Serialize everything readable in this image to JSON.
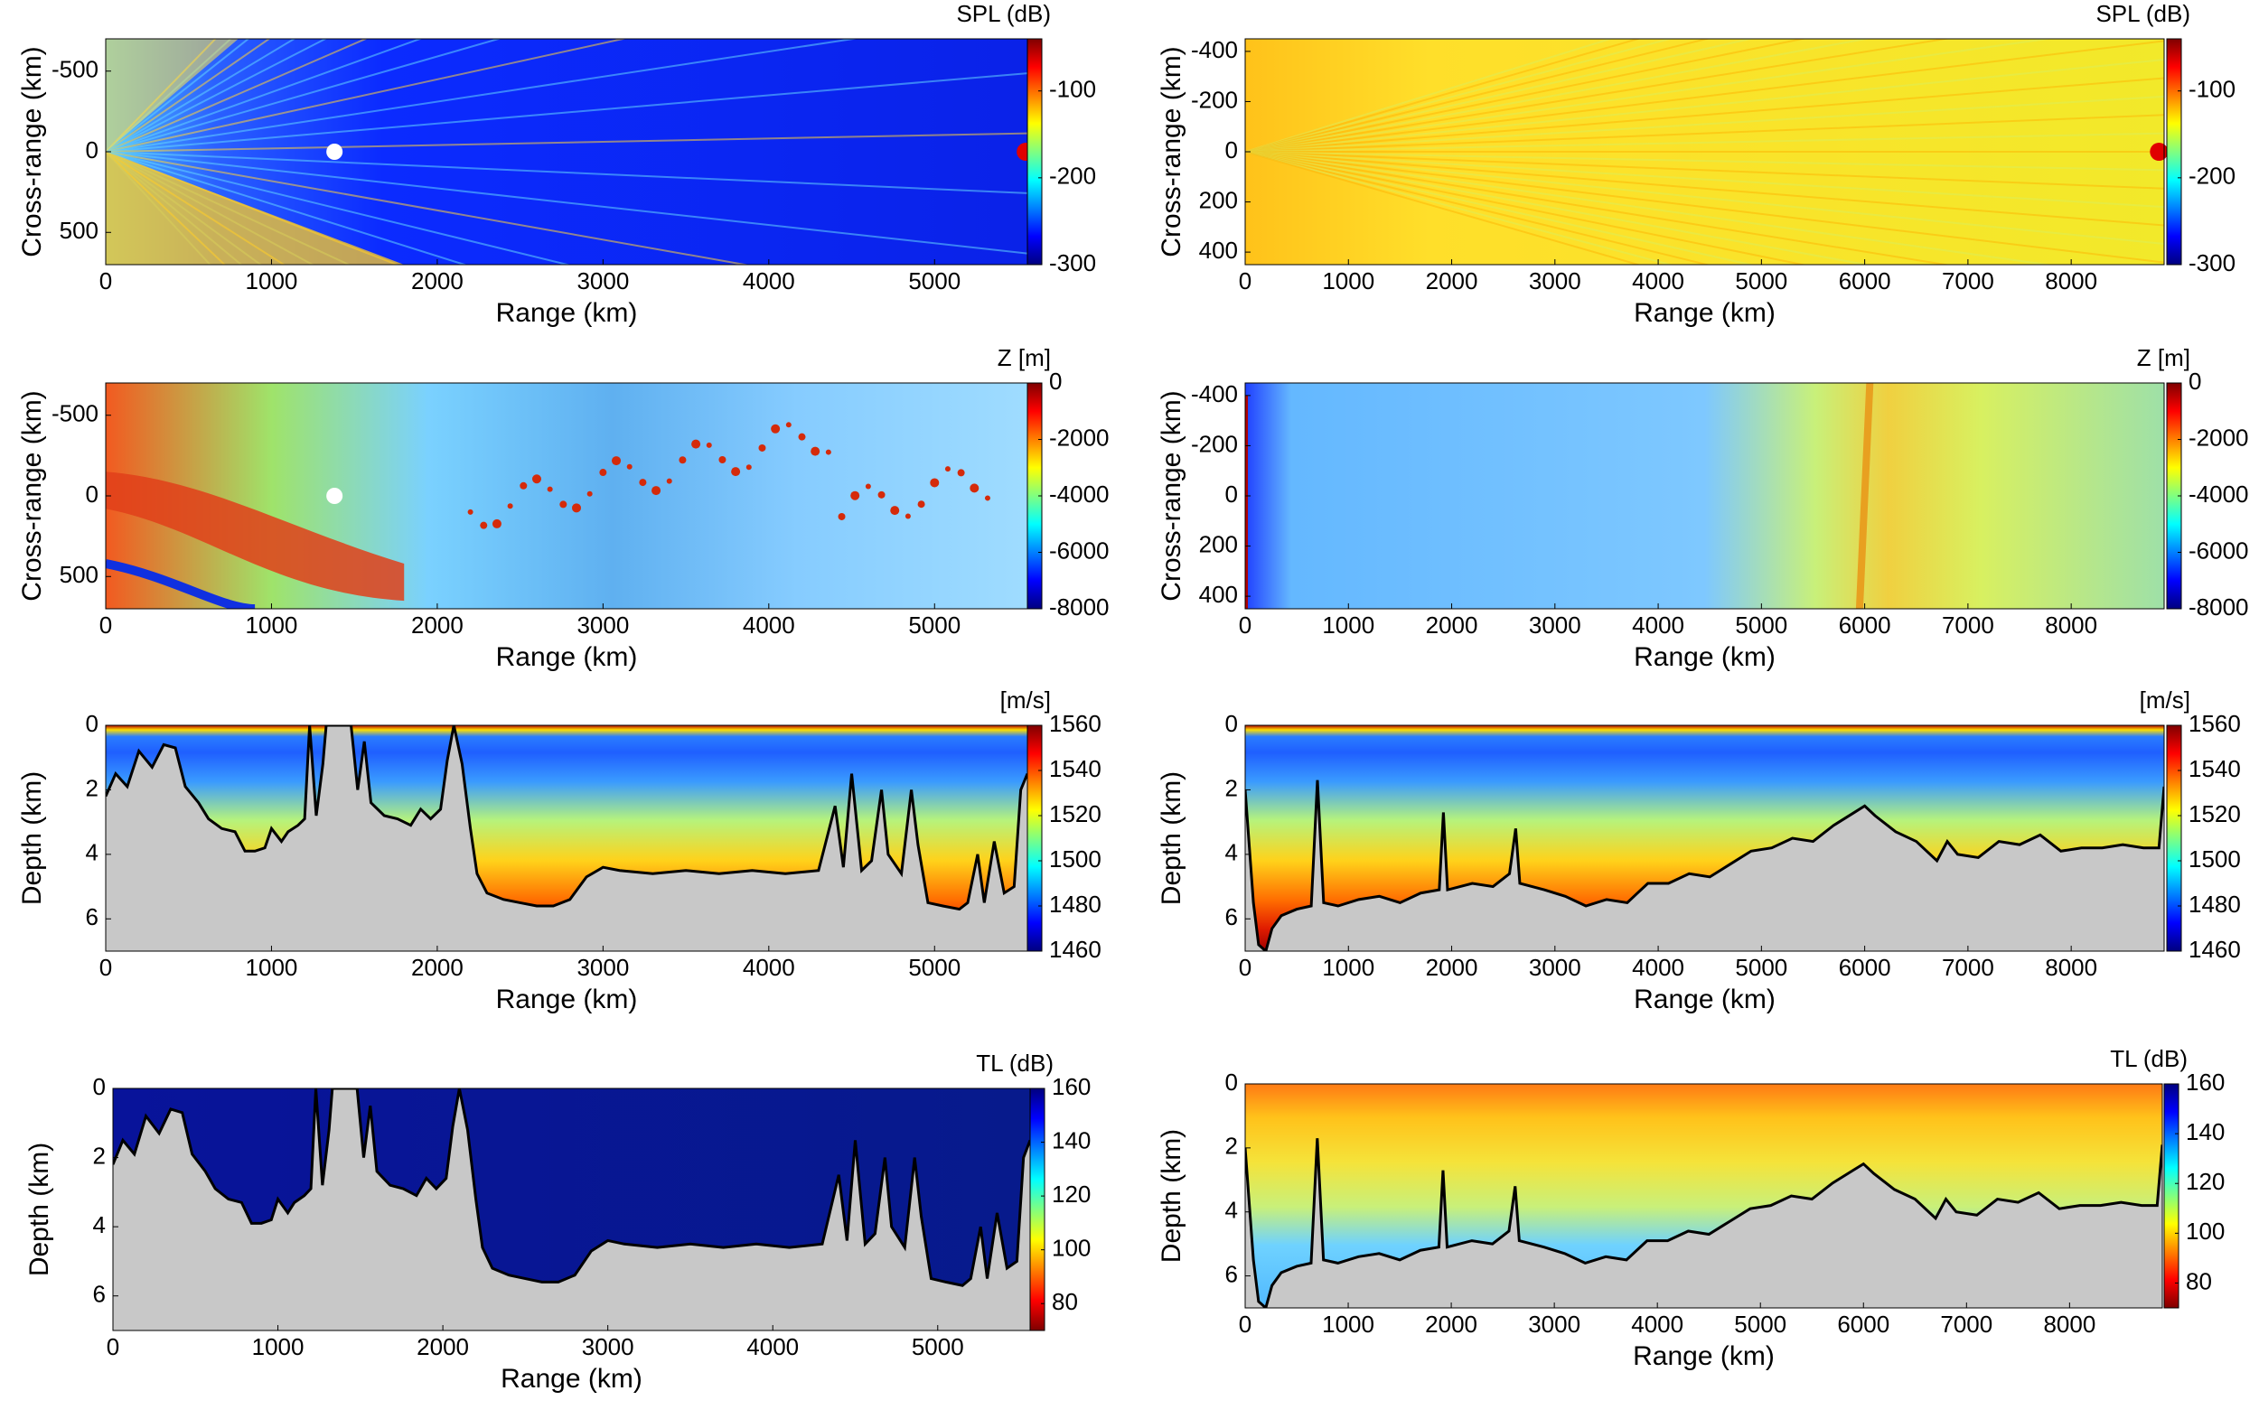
{
  "figure": {
    "colormaps": {
      "jet": [
        "#00007f",
        "#0000ff",
        "#0080ff",
        "#00ffff",
        "#80ff80",
        "#ffff00",
        "#ff8000",
        "#ff0000",
        "#7f0000"
      ]
    },
    "land_color": "#c8c8c8",
    "marker_color": "#e00000"
  },
  "chart_data": [
    {
      "id": "spl-left",
      "type": "heatmap",
      "field": "SPL",
      "xlabel": "Range (km)",
      "ylabel": "Cross-range (km)",
      "x_ticks": [
        0,
        1000,
        2000,
        3000,
        4000,
        5000
      ],
      "x_tick_labels": [
        "0",
        "1000",
        "2000",
        "3000",
        "4000",
        "5000"
      ],
      "xlim": [
        0,
        5560
      ],
      "y_ticks": [
        -500,
        0,
        500
      ],
      "y_tick_labels": [
        "-500",
        "0",
        "500"
      ],
      "ylim": [
        -700,
        700
      ],
      "colorbar": {
        "title": "SPL (dB)",
        "ticks": [
          -100,
          -200,
          -300
        ],
        "tick_labels": [
          "-100",
          "-200",
          "-300"
        ],
        "range": [
          -300,
          -40
        ],
        "reversed": false
      },
      "receiver_marker": {
        "range_km": 5550,
        "cross_km": 0
      }
    },
    {
      "id": "spl-right",
      "type": "heatmap",
      "field": "SPL",
      "xlabel": "Range (km)",
      "ylabel": "Cross-range (km)",
      "x_ticks": [
        0,
        1000,
        2000,
        3000,
        4000,
        5000,
        6000,
        7000,
        8000
      ],
      "x_tick_labels": [
        "0",
        "1000",
        "2000",
        "3000",
        "4000",
        "5000",
        "6000",
        "7000",
        "8000"
      ],
      "xlim": [
        0,
        8900
      ],
      "y_ticks": [
        -400,
        -200,
        0,
        200,
        400
      ],
      "y_tick_labels": [
        "-400",
        "-200",
        "0",
        "200",
        "400"
      ],
      "ylim": [
        -450,
        450
      ],
      "colorbar": {
        "title": "SPL (dB)",
        "ticks": [
          -100,
          -200,
          -300
        ],
        "tick_labels": [
          "-100",
          "-200",
          "-300"
        ],
        "range": [
          -300,
          -40
        ],
        "reversed": false
      },
      "receiver_marker": {
        "range_km": 8850,
        "cross_km": 0
      }
    },
    {
      "id": "bathy-left",
      "type": "heatmap",
      "field": "bathymetry",
      "xlabel": "Range (km)",
      "ylabel": "Cross-range (km)",
      "x_ticks": [
        0,
        1000,
        2000,
        3000,
        4000,
        5000
      ],
      "x_tick_labels": [
        "0",
        "1000",
        "2000",
        "3000",
        "4000",
        "5000"
      ],
      "xlim": [
        0,
        5560
      ],
      "y_ticks": [
        -500,
        0,
        500
      ],
      "y_tick_labels": [
        "-500",
        "0",
        "500"
      ],
      "ylim": [
        -700,
        700
      ],
      "colorbar": {
        "title": "Z [m]",
        "ticks": [
          0,
          -2000,
          -4000,
          -6000,
          -8000
        ],
        "tick_labels": [
          "0",
          "-2000",
          "-4000",
          "-6000",
          "-8000"
        ],
        "range": [
          -8000,
          0
        ],
        "reversed": false
      }
    },
    {
      "id": "bathy-right",
      "type": "heatmap",
      "field": "bathymetry",
      "xlabel": "Range (km)",
      "ylabel": "Cross-range (km)",
      "x_ticks": [
        0,
        1000,
        2000,
        3000,
        4000,
        5000,
        6000,
        7000,
        8000
      ],
      "x_tick_labels": [
        "0",
        "1000",
        "2000",
        "3000",
        "4000",
        "5000",
        "6000",
        "7000",
        "8000"
      ],
      "xlim": [
        0,
        8900
      ],
      "y_ticks": [
        -400,
        -200,
        0,
        200,
        400
      ],
      "y_tick_labels": [
        "-400",
        "-200",
        "0",
        "200",
        "400"
      ],
      "ylim": [
        -450,
        450
      ],
      "colorbar": {
        "title": "Z [m]",
        "ticks": [
          0,
          -2000,
          -4000,
          -6000,
          -8000
        ],
        "tick_labels": [
          "0",
          "-2000",
          "-4000",
          "-6000",
          "-8000"
        ],
        "range": [
          -8000,
          0
        ],
        "reversed": false
      }
    },
    {
      "id": "ssp-left",
      "type": "heatmap",
      "field": "sound speed",
      "xlabel": "Range (km)",
      "ylabel": "Depth (km)",
      "x_ticks": [
        0,
        1000,
        2000,
        3000,
        4000,
        5000
      ],
      "x_tick_labels": [
        "0",
        "1000",
        "2000",
        "3000",
        "4000",
        "5000"
      ],
      "xlim": [
        0,
        5560
      ],
      "y_ticks": [
        0,
        2,
        4,
        6
      ],
      "y_tick_labels": [
        "0",
        "2",
        "4",
        "6"
      ],
      "ylim": [
        0,
        7
      ],
      "colorbar": {
        "title": "[m/s]",
        "ticks": [
          1560,
          1540,
          1520,
          1500,
          1480,
          1460
        ],
        "tick_labels": [
          "1560",
          "1540",
          "1520",
          "1500",
          "1480",
          "1460"
        ],
        "range": [
          1460,
          1560
        ],
        "reversed": false
      },
      "bathymetry_km": [
        [
          0,
          2.2
        ],
        [
          60,
          1.5
        ],
        [
          130,
          1.9
        ],
        [
          200,
          0.8
        ],
        [
          280,
          1.3
        ],
        [
          350,
          0.6
        ],
        [
          420,
          0.7
        ],
        [
          480,
          1.9
        ],
        [
          560,
          2.4
        ],
        [
          620,
          2.9
        ],
        [
          700,
          3.2
        ],
        [
          780,
          3.3
        ],
        [
          840,
          3.9
        ],
        [
          900,
          3.9
        ],
        [
          960,
          3.8
        ],
        [
          1000,
          3.2
        ],
        [
          1060,
          3.6
        ],
        [
          1100,
          3.3
        ],
        [
          1160,
          3.1
        ],
        [
          1200,
          2.9
        ],
        [
          1230,
          0.0
        ],
        [
          1270,
          2.8
        ],
        [
          1310,
          1.2
        ],
        [
          1330,
          0.0
        ],
        [
          1480,
          0.0
        ],
        [
          1520,
          2.0
        ],
        [
          1560,
          0.5
        ],
        [
          1600,
          2.4
        ],
        [
          1680,
          2.8
        ],
        [
          1760,
          2.9
        ],
        [
          1840,
          3.1
        ],
        [
          1900,
          2.6
        ],
        [
          1960,
          2.9
        ],
        [
          2020,
          2.6
        ],
        [
          2060,
          1.1
        ],
        [
          2100,
          0.0
        ],
        [
          2150,
          1.2
        ],
        [
          2200,
          3.2
        ],
        [
          2240,
          4.6
        ],
        [
          2300,
          5.2
        ],
        [
          2400,
          5.4
        ],
        [
          2500,
          5.5
        ],
        [
          2600,
          5.6
        ],
        [
          2700,
          5.6
        ],
        [
          2800,
          5.4
        ],
        [
          2900,
          4.7
        ],
        [
          3000,
          4.4
        ],
        [
          3100,
          4.5
        ],
        [
          3300,
          4.6
        ],
        [
          3500,
          4.5
        ],
        [
          3700,
          4.6
        ],
        [
          3900,
          4.5
        ],
        [
          4100,
          4.6
        ],
        [
          4300,
          4.5
        ],
        [
          4400,
          2.5
        ],
        [
          4450,
          4.4
        ],
        [
          4500,
          1.5
        ],
        [
          4560,
          4.5
        ],
        [
          4620,
          4.2
        ],
        [
          4680,
          2.0
        ],
        [
          4720,
          4.0
        ],
        [
          4800,
          4.6
        ],
        [
          4860,
          2.0
        ],
        [
          4900,
          3.7
        ],
        [
          4960,
          5.5
        ],
        [
          5050,
          5.6
        ],
        [
          5150,
          5.7
        ],
        [
          5200,
          5.5
        ],
        [
          5260,
          4.0
        ],
        [
          5300,
          5.5
        ],
        [
          5360,
          3.6
        ],
        [
          5420,
          5.2
        ],
        [
          5480,
          5.0
        ],
        [
          5520,
          2.0
        ],
        [
          5560,
          1.5
        ]
      ]
    },
    {
      "id": "ssp-right",
      "type": "heatmap",
      "field": "sound speed",
      "xlabel": "Range (km)",
      "ylabel": "Depth (km)",
      "x_ticks": [
        0,
        1000,
        2000,
        3000,
        4000,
        5000,
        6000,
        7000,
        8000
      ],
      "x_tick_labels": [
        "0",
        "1000",
        "2000",
        "3000",
        "4000",
        "5000",
        "6000",
        "7000",
        "8000"
      ],
      "xlim": [
        0,
        8900
      ],
      "y_ticks": [
        0,
        2,
        4,
        6
      ],
      "y_tick_labels": [
        "0",
        "2",
        "4",
        "6"
      ],
      "ylim": [
        0,
        7
      ],
      "colorbar": {
        "title": "[m/s]",
        "ticks": [
          1560,
          1540,
          1520,
          1500,
          1480,
          1460
        ],
        "tick_labels": [
          "1560",
          "1540",
          "1520",
          "1500",
          "1480",
          "1460"
        ],
        "range": [
          1460,
          1560
        ],
        "reversed": false
      },
      "bathymetry_km": [
        [
          0,
          2.0
        ],
        [
          80,
          5.5
        ],
        [
          130,
          6.8
        ],
        [
          200,
          7.0
        ],
        [
          260,
          6.3
        ],
        [
          350,
          5.9
        ],
        [
          500,
          5.7
        ],
        [
          640,
          5.6
        ],
        [
          700,
          1.7
        ],
        [
          760,
          5.5
        ],
        [
          900,
          5.6
        ],
        [
          1100,
          5.4
        ],
        [
          1300,
          5.3
        ],
        [
          1500,
          5.5
        ],
        [
          1700,
          5.2
        ],
        [
          1880,
          5.1
        ],
        [
          1920,
          2.7
        ],
        [
          1960,
          5.1
        ],
        [
          2200,
          4.9
        ],
        [
          2400,
          5.0
        ],
        [
          2560,
          4.6
        ],
        [
          2620,
          3.2
        ],
        [
          2660,
          4.9
        ],
        [
          2900,
          5.1
        ],
        [
          3100,
          5.3
        ],
        [
          3300,
          5.6
        ],
        [
          3500,
          5.4
        ],
        [
          3700,
          5.5
        ],
        [
          3800,
          5.2
        ],
        [
          3900,
          4.9
        ],
        [
          4100,
          4.9
        ],
        [
          4300,
          4.6
        ],
        [
          4500,
          4.7
        ],
        [
          4700,
          4.3
        ],
        [
          4900,
          3.9
        ],
        [
          5100,
          3.8
        ],
        [
          5300,
          3.5
        ],
        [
          5500,
          3.6
        ],
        [
          5700,
          3.1
        ],
        [
          5900,
          2.7
        ],
        [
          6000,
          2.5
        ],
        [
          6100,
          2.8
        ],
        [
          6300,
          3.3
        ],
        [
          6500,
          3.6
        ],
        [
          6700,
          4.2
        ],
        [
          6800,
          3.6
        ],
        [
          6900,
          4.0
        ],
        [
          7100,
          4.1
        ],
        [
          7300,
          3.6
        ],
        [
          7500,
          3.7
        ],
        [
          7700,
          3.4
        ],
        [
          7900,
          3.9
        ],
        [
          8100,
          3.8
        ],
        [
          8300,
          3.8
        ],
        [
          8500,
          3.7
        ],
        [
          8700,
          3.8
        ],
        [
          8850,
          3.8
        ],
        [
          8900,
          1.9
        ]
      ]
    },
    {
      "id": "tl-left",
      "type": "heatmap",
      "field": "transmission loss",
      "xlabel": "Range (km)",
      "ylabel": "Depth (km)",
      "x_ticks": [
        0,
        1000,
        2000,
        3000,
        4000,
        5000
      ],
      "x_tick_labels": [
        "0",
        "1000",
        "2000",
        "3000",
        "4000",
        "5000"
      ],
      "xlim": [
        0,
        5560
      ],
      "y_ticks": [
        0,
        2,
        4,
        6
      ],
      "y_tick_labels": [
        "0",
        "2",
        "4",
        "6"
      ],
      "ylim": [
        0,
        7
      ],
      "colorbar": {
        "title": "TL (dB)",
        "ticks": [
          160,
          140,
          120,
          100,
          80
        ],
        "tick_labels": [
          "160",
          "140",
          "120",
          "100",
          "80"
        ],
        "range": [
          70,
          160
        ],
        "reversed": true
      }
    },
    {
      "id": "tl-right",
      "type": "heatmap",
      "field": "transmission loss",
      "xlabel": "Range (km)",
      "ylabel": "Depth (km)",
      "x_ticks": [
        0,
        1000,
        2000,
        3000,
        4000,
        5000,
        6000,
        7000,
        8000
      ],
      "x_tick_labels": [
        "0",
        "1000",
        "2000",
        "3000",
        "4000",
        "5000",
        "6000",
        "7000",
        "8000"
      ],
      "xlim": [
        0,
        8900
      ],
      "y_ticks": [
        0,
        2,
        4,
        6
      ],
      "y_tick_labels": [
        "0",
        "2",
        "4",
        "6"
      ],
      "ylim": [
        0,
        7
      ],
      "colorbar": {
        "title": "TL (dB)",
        "ticks": [
          160,
          140,
          120,
          100,
          80
        ],
        "tick_labels": [
          "160",
          "140",
          "120",
          "100",
          "80"
        ],
        "range": [
          70,
          160
        ],
        "reversed": true
      }
    }
  ]
}
